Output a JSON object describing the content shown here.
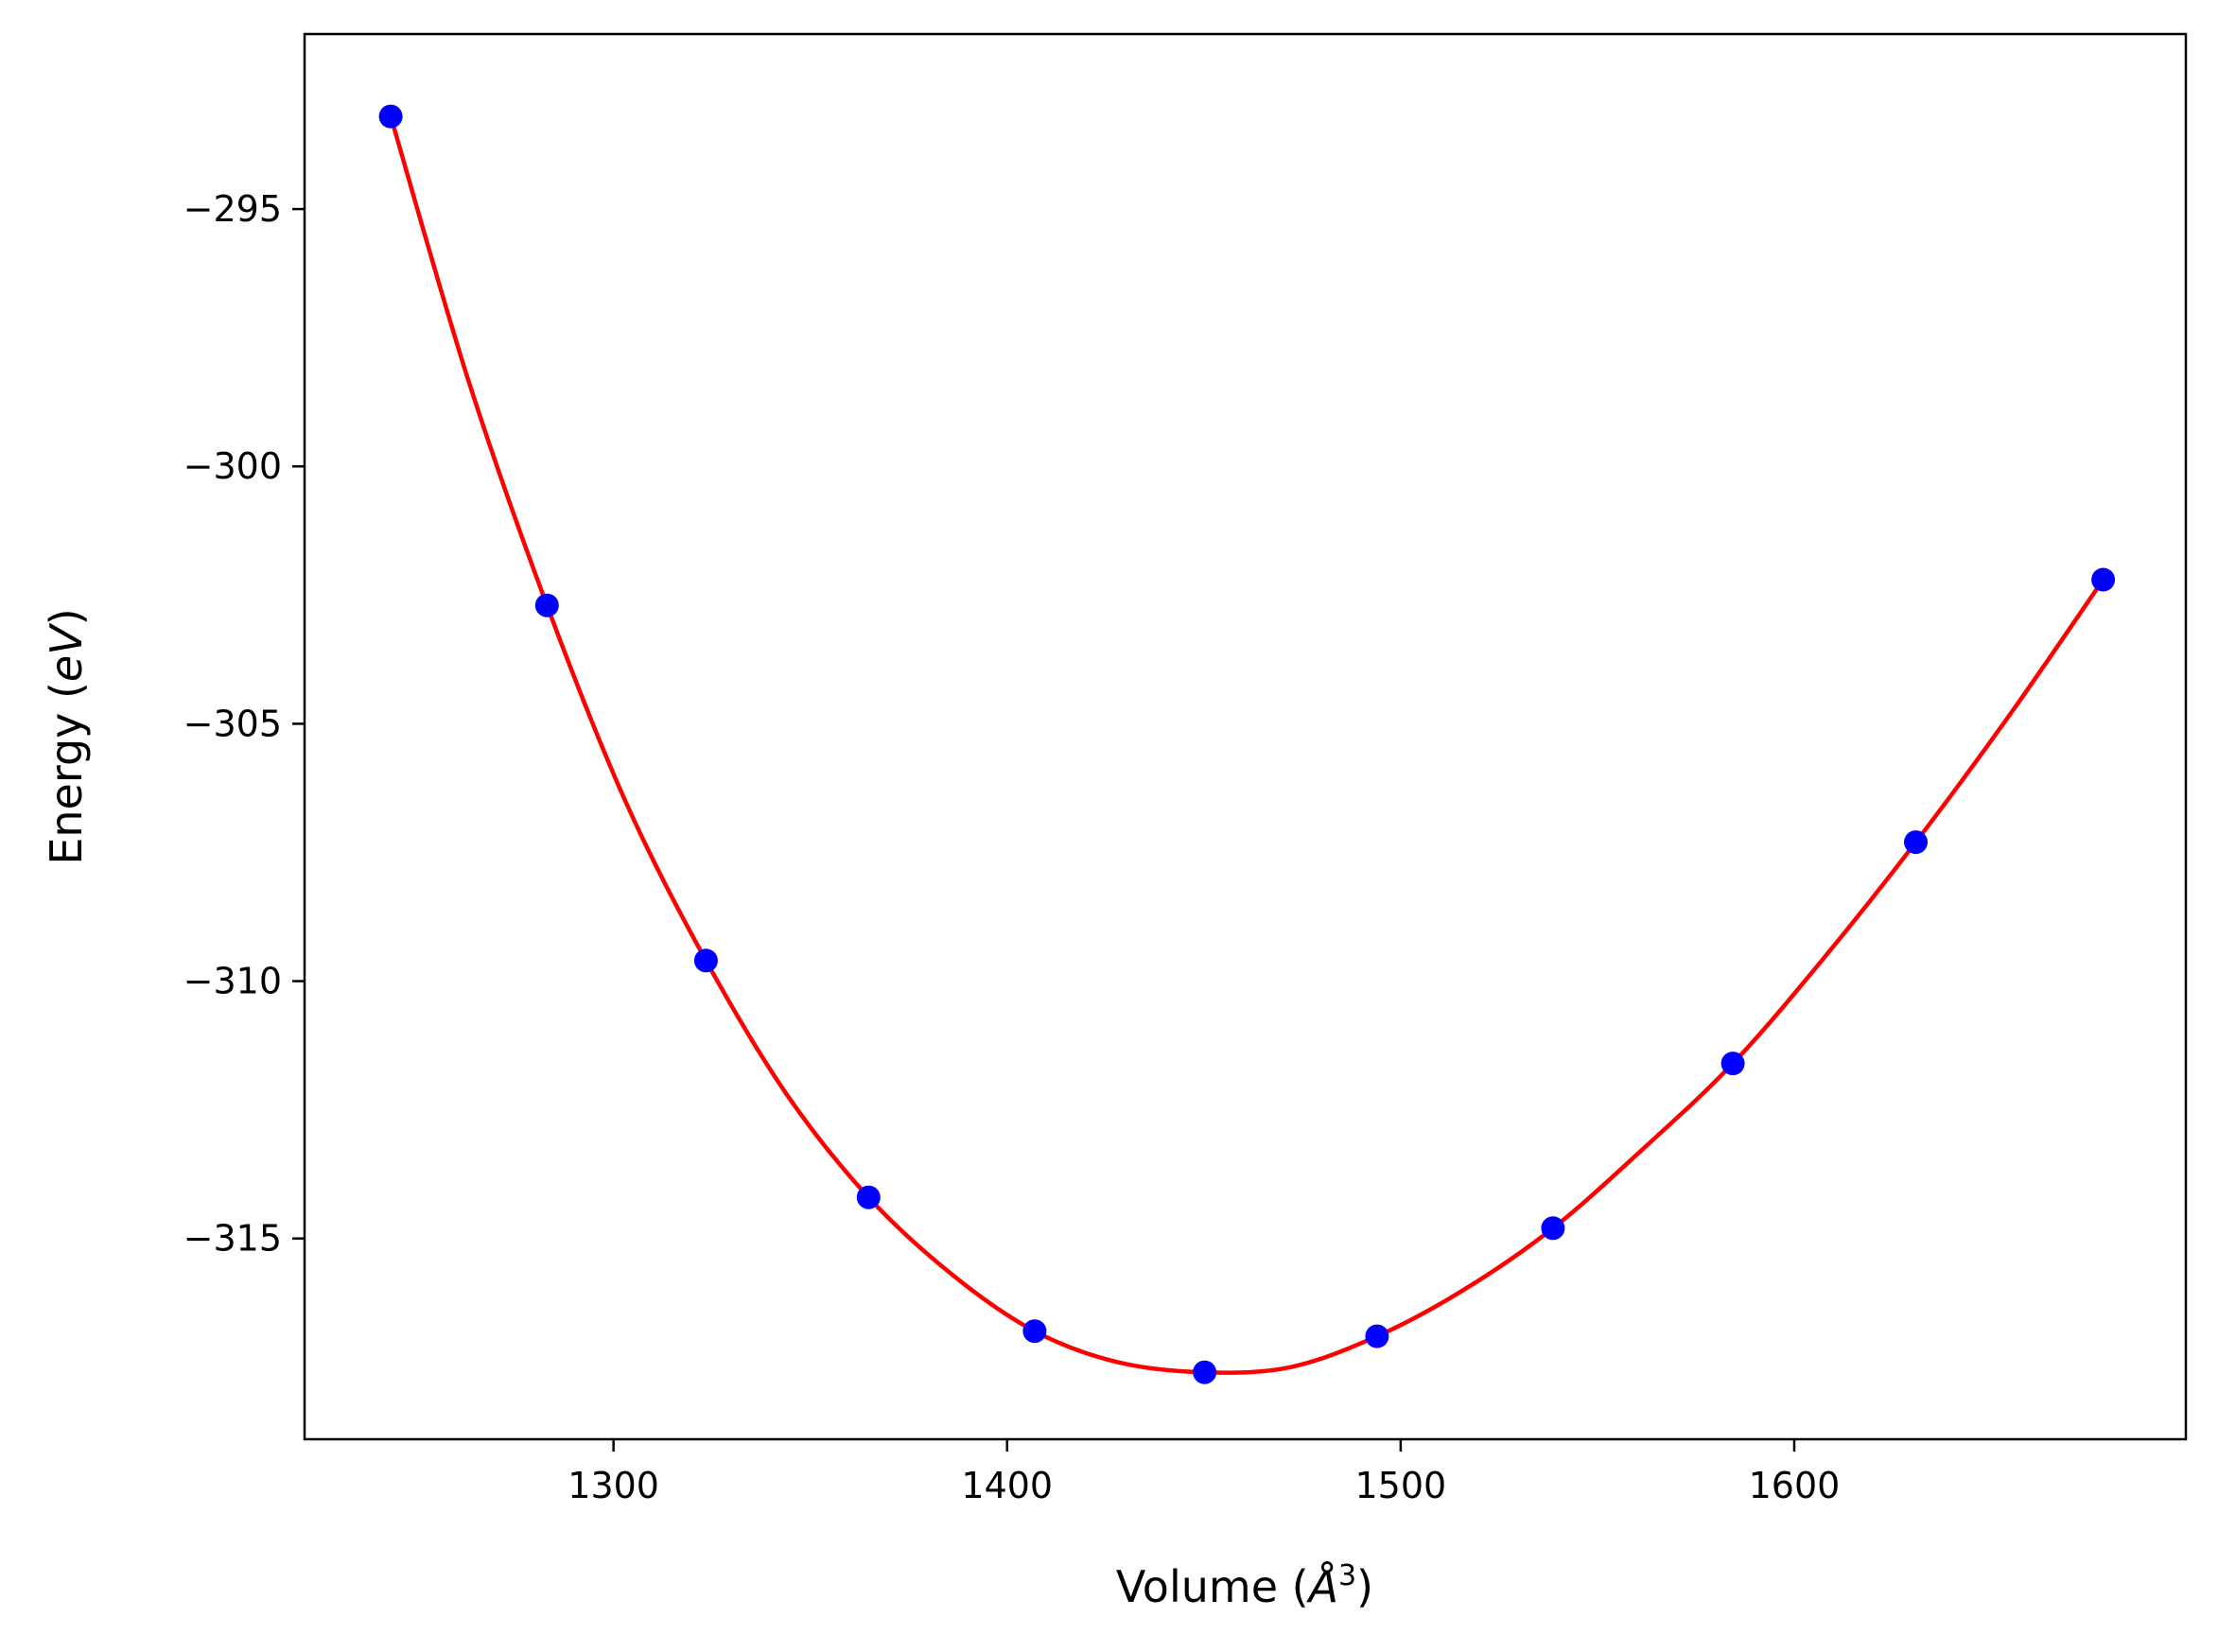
{
  "chart_data": {
    "type": "scatter",
    "title": "",
    "xlabel_text": "Volume (",
    "xlabel_unit_symbol": "Å",
    "xlabel_unit_power": "3",
    "xlabel_close": ")",
    "ylabel_text": "Energy (",
    "ylabel_unit": "eV",
    "ylabel_close": ")",
    "xlim": [
      1221.5,
      1699.5
    ],
    "ylim": [
      -318.9,
      -291.6
    ],
    "xticks": [
      1300,
      1400,
      1500,
      1600
    ],
    "xtick_labels": [
      "1300",
      "1400",
      "1500",
      "1600"
    ],
    "yticks": [
      -295,
      -300,
      -305,
      -310,
      -315
    ],
    "ytick_labels": [
      "−295",
      "−300",
      "−305",
      "−310",
      "−315"
    ],
    "grid": false,
    "series": [
      {
        "kind": "points",
        "color": "#0000ff",
        "x": [
          1243.4,
          1283.1,
          1323.5,
          1364.8,
          1407.0,
          1450.2,
          1494.0,
          1538.7,
          1584.4,
          1630.9,
          1678.5
        ],
        "y": [
          -293.2,
          -302.7,
          -309.6,
          -314.2,
          -316.8,
          -317.6,
          -316.9,
          -314.8,
          -311.6,
          -307.3,
          -302.2
        ]
      },
      {
        "kind": "fit-curve",
        "color": "#ff0000",
        "x": [
          1243.4,
          1263.0,
          1283.1,
          1303.0,
          1323.5,
          1344.0,
          1364.8,
          1386.0,
          1407.0,
          1428.0,
          1450.2,
          1472.0,
          1494.0,
          1516.0,
          1538.7,
          1561.0,
          1584.4,
          1607.0,
          1630.9,
          1655.0,
          1678.5
        ],
        "y": [
          -293.2,
          -298.3,
          -302.7,
          -306.5,
          -309.6,
          -312.2,
          -314.2,
          -315.7,
          -316.8,
          -317.4,
          -317.6,
          -317.5,
          -316.9,
          -316.0,
          -314.8,
          -313.3,
          -311.6,
          -309.6,
          -307.3,
          -304.8,
          -302.2
        ]
      }
    ]
  }
}
